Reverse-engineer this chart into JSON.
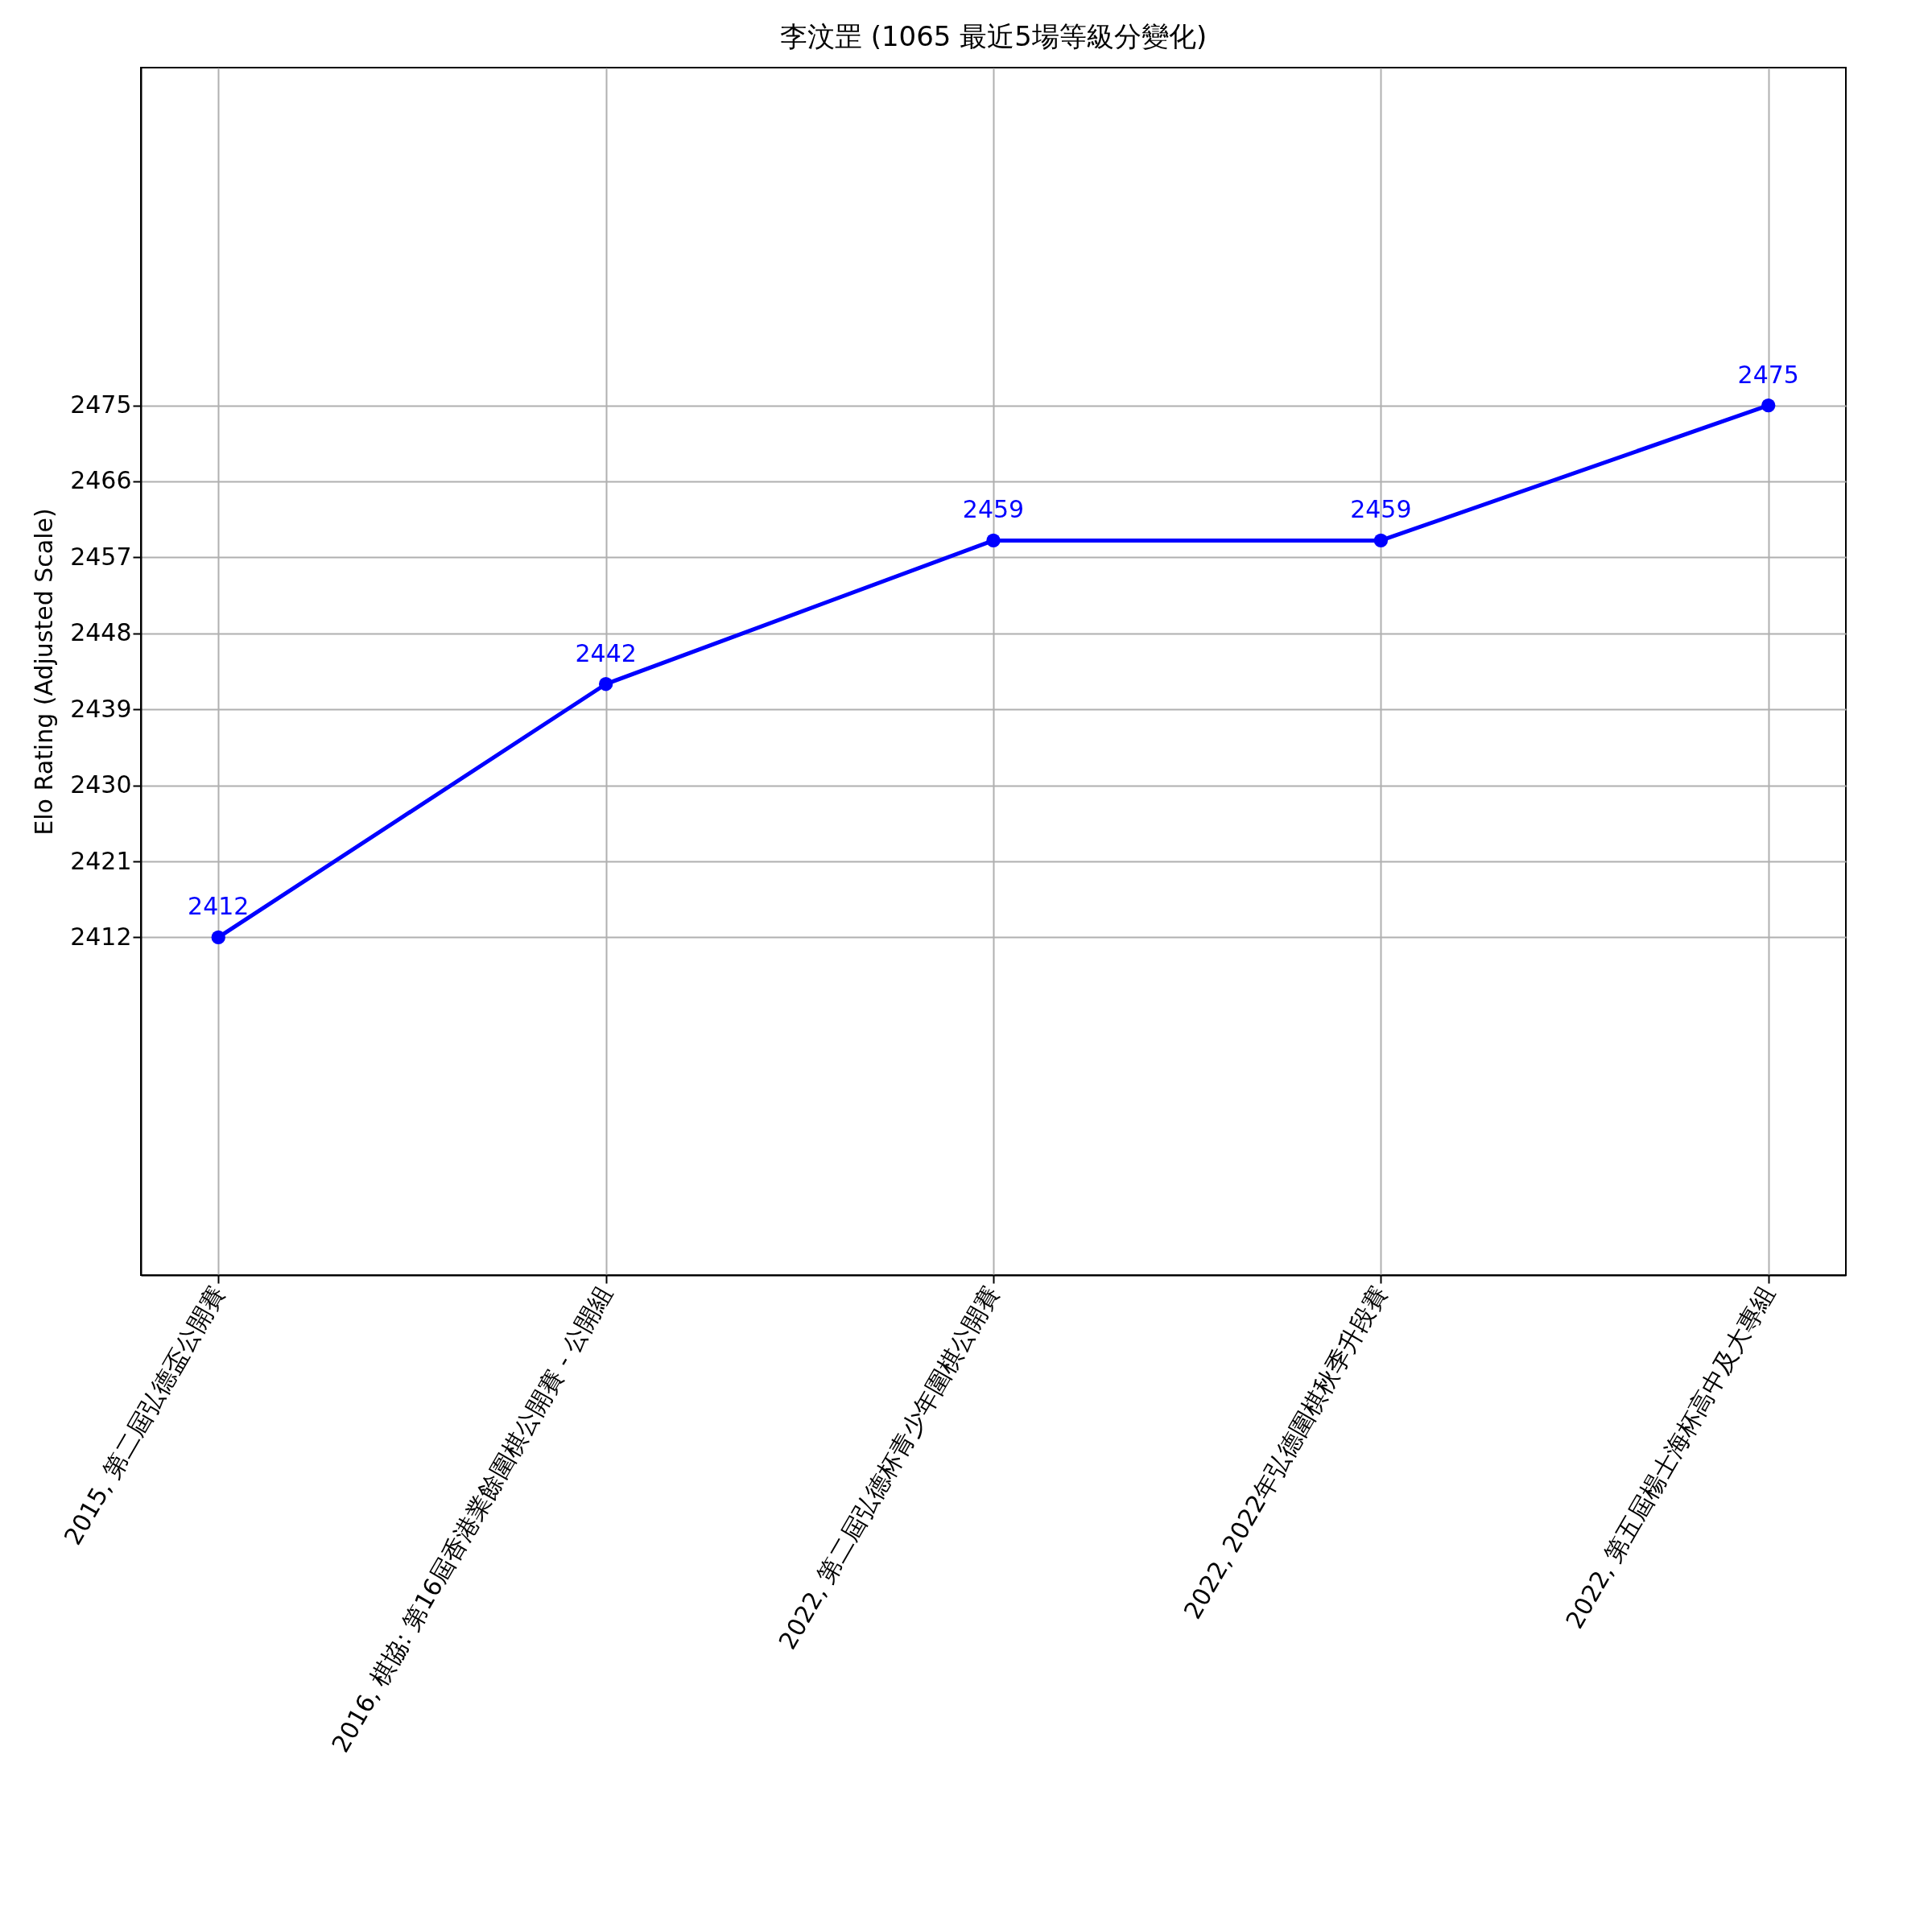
{
  "chart_data": {
    "type": "line",
    "title": "李汶罡 (1065 最近5場等級分變化)",
    "ylabel": "Elo Rating (Adjusted Scale)",
    "categories": [
      "2015, 第二屆弘德盃公開賽",
      "2016, 棋協: 第16屆香港業餘圍棋公開賽 - 公開組",
      "2022, 第二屆弘德杯青少年圍棋公開賽",
      "2022, 2022年弘德圍棋秋季升段賽",
      "2022, 第五屆楊士海杯高中及大專組"
    ],
    "series": [
      {
        "color": "#0000ff",
        "values": [
          2412,
          2442,
          2459,
          2459,
          2475
        ]
      }
    ],
    "ylim": [
      2372,
      2515
    ],
    "yticks": [
      2412,
      2421,
      2430,
      2439,
      2448,
      2457,
      2466,
      2475
    ],
    "grid": true,
    "marker": "circle",
    "line_style": "solid",
    "data_labels": true
  }
}
